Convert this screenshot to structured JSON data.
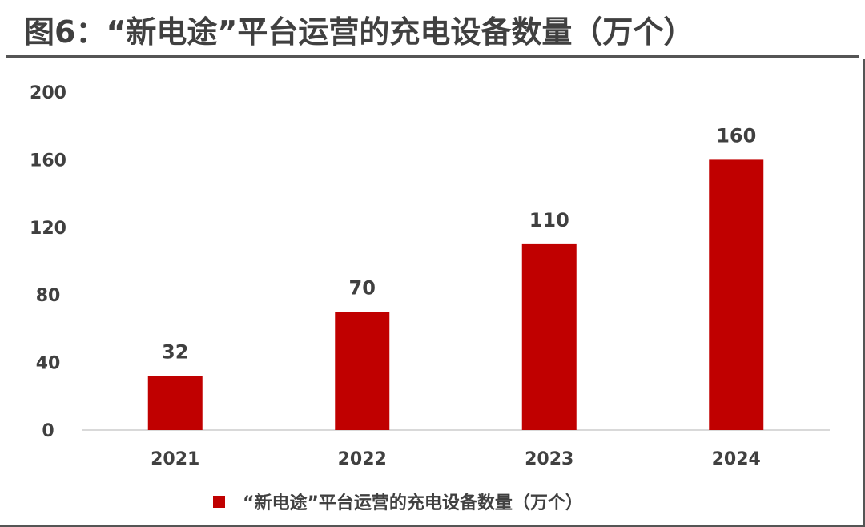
{
  "title": "图6：“新电途”平台运营的充电设备数量（万个）",
  "colors": {
    "bar": "#C00000",
    "axis": "#D9D9D9",
    "text": "#404040",
    "rule": "#555555"
  },
  "chart_data": {
    "type": "bar",
    "title": "图6：“新电途”平台运营的充电设备数量（万个）",
    "categories": [
      "2021",
      "2022",
      "2023",
      "2024"
    ],
    "series": [
      {
        "name": "“新电途”平台运营的充电设备数量（万个）",
        "values": [
          32,
          70,
          110,
          160
        ]
      }
    ],
    "data_labels": [
      "32",
      "70",
      "110",
      "160"
    ],
    "yticks": [
      "0",
      "40",
      "80",
      "120",
      "160",
      "200"
    ],
    "ylim": [
      0,
      200
    ],
    "xlabel": "",
    "ylabel": "",
    "grid": false,
    "legend_position": "bottom"
  }
}
